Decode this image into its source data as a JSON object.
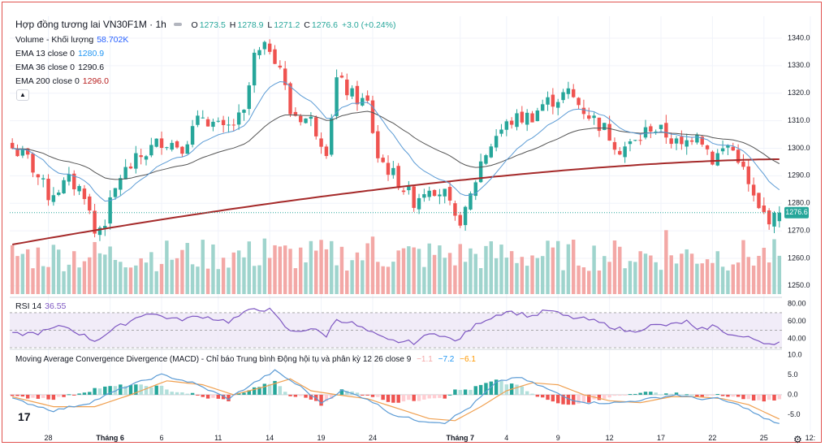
{
  "header": {
    "symbol_title": "Hợp đồng tương lai VN30F1M · 1h",
    "ohlc": {
      "o_label": "O",
      "o_value": "1273.5",
      "h_label": "H",
      "h_value": "1278.9",
      "l_label": "L",
      "l_value": "1271.2",
      "c_label": "C",
      "c_value": "1276.6",
      "change": "+3.0 (+0.24%)"
    }
  },
  "indicators": [
    {
      "label": "Volume - Khối lượng",
      "value": "58.702K",
      "color": "#2962ff"
    },
    {
      "label": "EMA 13 close 0",
      "value": "1280.9",
      "color": "#2196f3"
    },
    {
      "label": "EMA 36 close 0",
      "value": "1290.6",
      "color": "#131722"
    },
    {
      "label": "EMA 200 close 0",
      "value": "1296.0",
      "color": "#b71c1c"
    }
  ],
  "rsi_legend": {
    "label": "RSI 14",
    "value": "36.55"
  },
  "macd_legend": {
    "label": "Moving Average Convergence Divergence (MACD) - Chỉ báo Trung bình Động hội tụ và phân kỳ 12 26 close 9",
    "v1": "−1.1",
    "v2": "−7.2",
    "v3": "−6.1"
  },
  "price_badge": "1276.6",
  "colors": {
    "up": "#26a69a",
    "down": "#ef5350",
    "ema13": "#5b9bd5",
    "ema36": "#555555",
    "ema200": "#a52a2a",
    "rsi": "#7e57c2",
    "macd": "#5b9bd5",
    "signal": "#f0a050"
  },
  "chart_data": {
    "type": "candlestick",
    "price_axis": {
      "ylim": [
        1247,
        1345
      ],
      "ticks": [
        "1340.0",
        "1330.0",
        "1320.0",
        "1310.0",
        "1300.0",
        "1290.0",
        "1280.0",
        "1270.0",
        "1260.0",
        "1250.0"
      ],
      "tick_values": [
        1340,
        1330,
        1320,
        1310,
        1300,
        1290,
        1280,
        1270,
        1260,
        1250
      ]
    },
    "rsi_axis": {
      "ylim": [
        30,
        82
      ],
      "ticks": [
        "80.00",
        "60.00",
        "40.00"
      ],
      "tick_values": [
        80,
        60,
        40
      ],
      "band": [
        30,
        70
      ]
    },
    "macd_axis": {
      "ylim": [
        -9,
        11
      ],
      "ticks": [
        "10.0",
        "5.0",
        "0.0",
        "-5.0"
      ],
      "tick_values": [
        10,
        5,
        0,
        -5
      ]
    },
    "x_labels": [
      {
        "text": "28",
        "index": 7
      },
      {
        "text": "Tháng 6",
        "index": 19
      },
      {
        "text": "6",
        "index": 29
      },
      {
        "text": "11",
        "index": 40
      },
      {
        "text": "14",
        "index": 50
      },
      {
        "text": "19",
        "index": 60
      },
      {
        "text": "24",
        "index": 70
      },
      {
        "text": "Tháng 7",
        "index": 87
      },
      {
        "text": "4",
        "index": 96
      },
      {
        "text": "9",
        "index": 106
      },
      {
        "text": "12",
        "index": 116
      },
      {
        "text": "17",
        "index": 126
      },
      {
        "text": "22",
        "index": 136
      },
      {
        "text": "25",
        "index": 146
      },
      {
        "text": "12:",
        "index": 155
      }
    ],
    "price_keypoints": [
      [
        0,
        1300
      ],
      [
        3,
        1296
      ],
      [
        7,
        1283
      ],
      [
        11,
        1288
      ],
      [
        14,
        1284
      ],
      [
        16,
        1269
      ],
      [
        18,
        1274
      ],
      [
        21,
        1290
      ],
      [
        25,
        1297
      ],
      [
        29,
        1303
      ],
      [
        33,
        1301
      ],
      [
        37,
        1312
      ],
      [
        41,
        1306
      ],
      [
        45,
        1312
      ],
      [
        47,
        1333
      ],
      [
        50,
        1337
      ],
      [
        52,
        1330
      ],
      [
        54,
        1313
      ],
      [
        58,
        1310
      ],
      [
        61,
        1300
      ],
      [
        63,
        1325
      ],
      [
        66,
        1319
      ],
      [
        69,
        1316
      ],
      [
        71,
        1297
      ],
      [
        75,
        1288
      ],
      [
        78,
        1281
      ],
      [
        81,
        1287
      ],
      [
        84,
        1283
      ],
      [
        86,
        1273
      ],
      [
        88,
        1276
      ],
      [
        91,
        1295
      ],
      [
        94,
        1305
      ],
      [
        97,
        1310
      ],
      [
        101,
        1312
      ],
      [
        103,
        1316
      ],
      [
        108,
        1320
      ],
      [
        111,
        1314
      ],
      [
        115,
        1307
      ],
      [
        118,
        1300
      ],
      [
        121,
        1302
      ],
      [
        124,
        1308
      ],
      [
        127,
        1305
      ],
      [
        130,
        1300
      ],
      [
        133,
        1307
      ],
      [
        136,
        1296
      ],
      [
        139,
        1301
      ],
      [
        141,
        1297
      ],
      [
        143,
        1286
      ],
      [
        145,
        1277
      ],
      [
        148,
        1274
      ],
      [
        149,
        1276.6
      ]
    ],
    "rsi_keypoints": [
      [
        0,
        45
      ],
      [
        5,
        47
      ],
      [
        10,
        55
      ],
      [
        16,
        38
      ],
      [
        20,
        52
      ],
      [
        26,
        70
      ],
      [
        32,
        62
      ],
      [
        37,
        66
      ],
      [
        42,
        60
      ],
      [
        47,
        75
      ],
      [
        50,
        73
      ],
      [
        54,
        48
      ],
      [
        58,
        52
      ],
      [
        61,
        44
      ],
      [
        63,
        63
      ],
      [
        66,
        58
      ],
      [
        70,
        46
      ],
      [
        73,
        38
      ],
      [
        78,
        36
      ],
      [
        82,
        48
      ],
      [
        86,
        37
      ],
      [
        91,
        60
      ],
      [
        96,
        72
      ],
      [
        101,
        66
      ],
      [
        104,
        73
      ],
      [
        108,
        65
      ],
      [
        112,
        62
      ],
      [
        116,
        55
      ],
      [
        120,
        48
      ],
      [
        124,
        55
      ],
      [
        128,
        56
      ],
      [
        131,
        60
      ],
      [
        133,
        49
      ],
      [
        136,
        55
      ],
      [
        140,
        44
      ],
      [
        144,
        40
      ],
      [
        147,
        35
      ],
      [
        149,
        37
      ]
    ],
    "macd_keypoints": [
      [
        0,
        -1
      ],
      [
        8,
        -4
      ],
      [
        15,
        -2
      ],
      [
        22,
        2
      ],
      [
        29,
        5
      ],
      [
        35,
        3
      ],
      [
        42,
        -1
      ],
      [
        47,
        3
      ],
      [
        51,
        6
      ],
      [
        56,
        2
      ],
      [
        60,
        -2
      ],
      [
        64,
        1
      ],
      [
        69,
        -1
      ],
      [
        74,
        -5
      ],
      [
        79,
        -6.5
      ],
      [
        84,
        -7
      ],
      [
        89,
        -3
      ],
      [
        94,
        3
      ],
      [
        98,
        4.5
      ],
      [
        103,
        2
      ],
      [
        108,
        -1
      ],
      [
        112,
        -2
      ],
      [
        118,
        -2
      ],
      [
        124,
        -1
      ],
      [
        129,
        0
      ],
      [
        133,
        -1
      ],
      [
        137,
        -1
      ],
      [
        142,
        -3
      ],
      [
        146,
        -6
      ],
      [
        149,
        -7.2
      ]
    ],
    "signal_keypoints": [
      [
        0,
        -0.5
      ],
      [
        8,
        -3
      ],
      [
        16,
        -3
      ],
      [
        23,
        0
      ],
      [
        30,
        3.5
      ],
      [
        37,
        2.5
      ],
      [
        43,
        0
      ],
      [
        49,
        2
      ],
      [
        54,
        4
      ],
      [
        58,
        1
      ],
      [
        63,
        0
      ],
      [
        69,
        -1
      ],
      [
        75,
        -3.5
      ],
      [
        81,
        -6
      ],
      [
        86,
        -6.5
      ],
      [
        91,
        -3
      ],
      [
        96,
        1
      ],
      [
        101,
        3
      ],
      [
        106,
        2.5
      ],
      [
        111,
        0
      ],
      [
        116,
        -1.5
      ],
      [
        122,
        -2
      ],
      [
        128,
        -0.5
      ],
      [
        133,
        -0.5
      ],
      [
        138,
        -1
      ],
      [
        143,
        -2.5
      ],
      [
        149,
        -6.1
      ]
    ]
  }
}
